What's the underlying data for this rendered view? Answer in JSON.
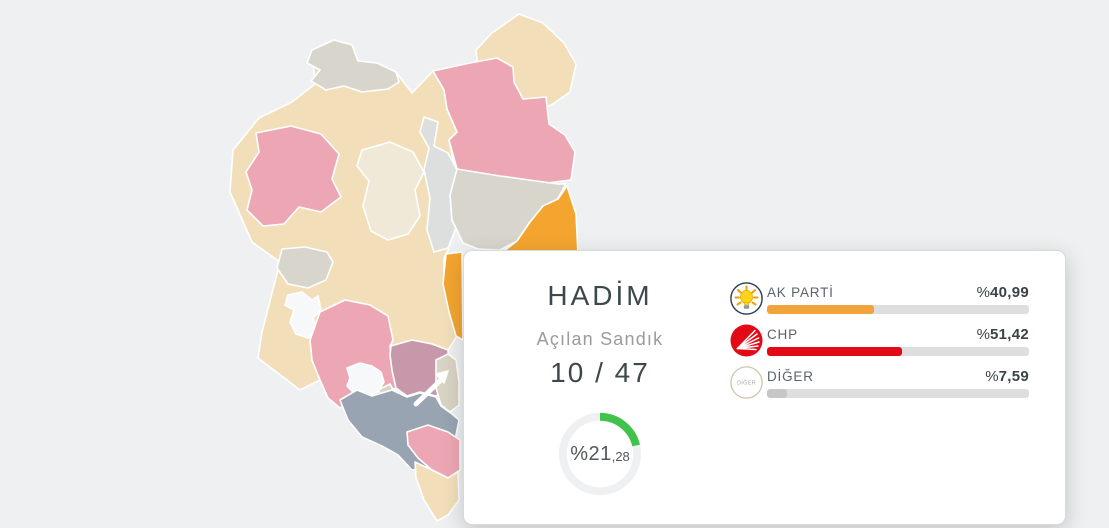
{
  "background_color": "#eef0f1",
  "card": {
    "title": "HADİM",
    "opened_ballot_label": "Açılan Sandık",
    "opened_ballot_value": "10 / 47",
    "turnout": {
      "display_main": "%21",
      "display_fraction": ",28",
      "percent": 21.28,
      "ring_color": "#41c24d",
      "ring_track_color": "#eef0f2"
    }
  },
  "parties": [
    {
      "name": "AK PARTİ",
      "icon": "ak-parti-lightbulb-icon",
      "percent_symbol": "%",
      "percent_value": "40,99",
      "percent": 40.99,
      "bar_color": "#f1a33c"
    },
    {
      "name": "CHP",
      "icon": "chp-six-arrows-icon",
      "percent_symbol": "%",
      "percent_value": "51,42",
      "percent": 51.42,
      "bar_color": "#e30a17"
    },
    {
      "name": "DİĞER",
      "icon": "diger-circle-icon",
      "icon_text": "DİĞER",
      "percent_symbol": "%",
      "percent_value": "7,59",
      "percent": 7.59,
      "bar_color": "#c7c7c7"
    }
  ],
  "chart_data": {
    "type": "bar",
    "title": "HADİM",
    "categories": [
      "AK PARTİ",
      "CHP",
      "DİĞER"
    ],
    "values": [
      40.99,
      51.42,
      7.59
    ],
    "ylabel": "%",
    "ylim": [
      0,
      100
    ],
    "annotations": {
      "opened_ballot": "10 / 47",
      "turnout_percent": 21.28
    }
  },
  "map": {
    "selected_district": "HADİM",
    "palette": {
      "beige": "#f2dfba",
      "beige_light": "#f0e9d8",
      "pink": "#eda7b4",
      "warm_gray": "#d8d6cc",
      "cool_gray": "#dcdfde",
      "orange_selected": "#f4a52f",
      "mauve": "#c698a9",
      "slate": "#98a4b2",
      "tan": "#d9d3c3",
      "lake": "#f7f8f9",
      "border": "#ffffff"
    }
  }
}
